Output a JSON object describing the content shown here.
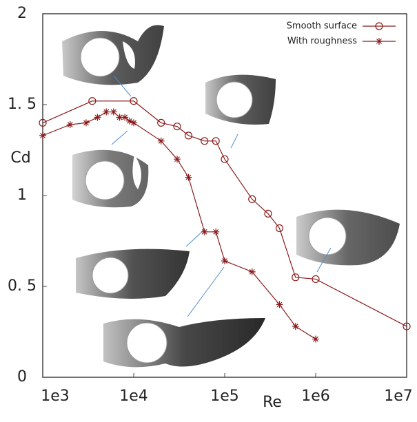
{
  "chart_data": {
    "type": "line",
    "x_label": "Re",
    "y_label": "Cd",
    "x_log": true,
    "xlim": [
      1000,
      10000000
    ],
    "ylim": [
      0,
      2
    ],
    "xticks": [
      {
        "value": 1000,
        "label": "1e3"
      },
      {
        "value": 10000,
        "label": "1e4"
      },
      {
        "value": 100000,
        "label": "1e5"
      },
      {
        "value": 1000000,
        "label": "1e6"
      },
      {
        "value": 10000000,
        "label": "1e7"
      }
    ],
    "yticks": [
      0,
      {
        "value": 0.5,
        "label": "0. 5"
      },
      1,
      {
        "value": 1.5,
        "label": "1. 5"
      },
      2
    ],
    "legend_position": "upper right",
    "series": [
      {
        "name": "Smooth surface",
        "color": "#8b1a1a",
        "marker": "circle",
        "x": [
          1000,
          3500,
          10000,
          20000,
          30000,
          40000,
          60000,
          80000,
          100000,
          200000,
          300000,
          400000,
          600000,
          1000000,
          10000000
        ],
        "values": [
          1.4,
          1.52,
          1.52,
          1.4,
          1.38,
          1.33,
          1.3,
          1.3,
          1.2,
          0.98,
          0.9,
          0.82,
          0.55,
          0.54,
          0.28
        ]
      },
      {
        "name": "With roughness",
        "color": "#8b1a1a",
        "marker": "asterisk",
        "x": [
          1000,
          2000,
          3000,
          4000,
          5000,
          6000,
          7000,
          8000,
          9000,
          10000,
          20000,
          30000,
          40000,
          60000,
          80000,
          100000,
          200000,
          400000,
          600000,
          1000000
        ],
        "values": [
          1.33,
          1.39,
          1.4,
          1.43,
          1.46,
          1.46,
          1.43,
          1.43,
          1.41,
          1.4,
          1.3,
          1.2,
          1.1,
          0.8,
          0.8,
          0.64,
          0.58,
          0.4,
          0.28,
          0.21
        ]
      }
    ]
  }
}
